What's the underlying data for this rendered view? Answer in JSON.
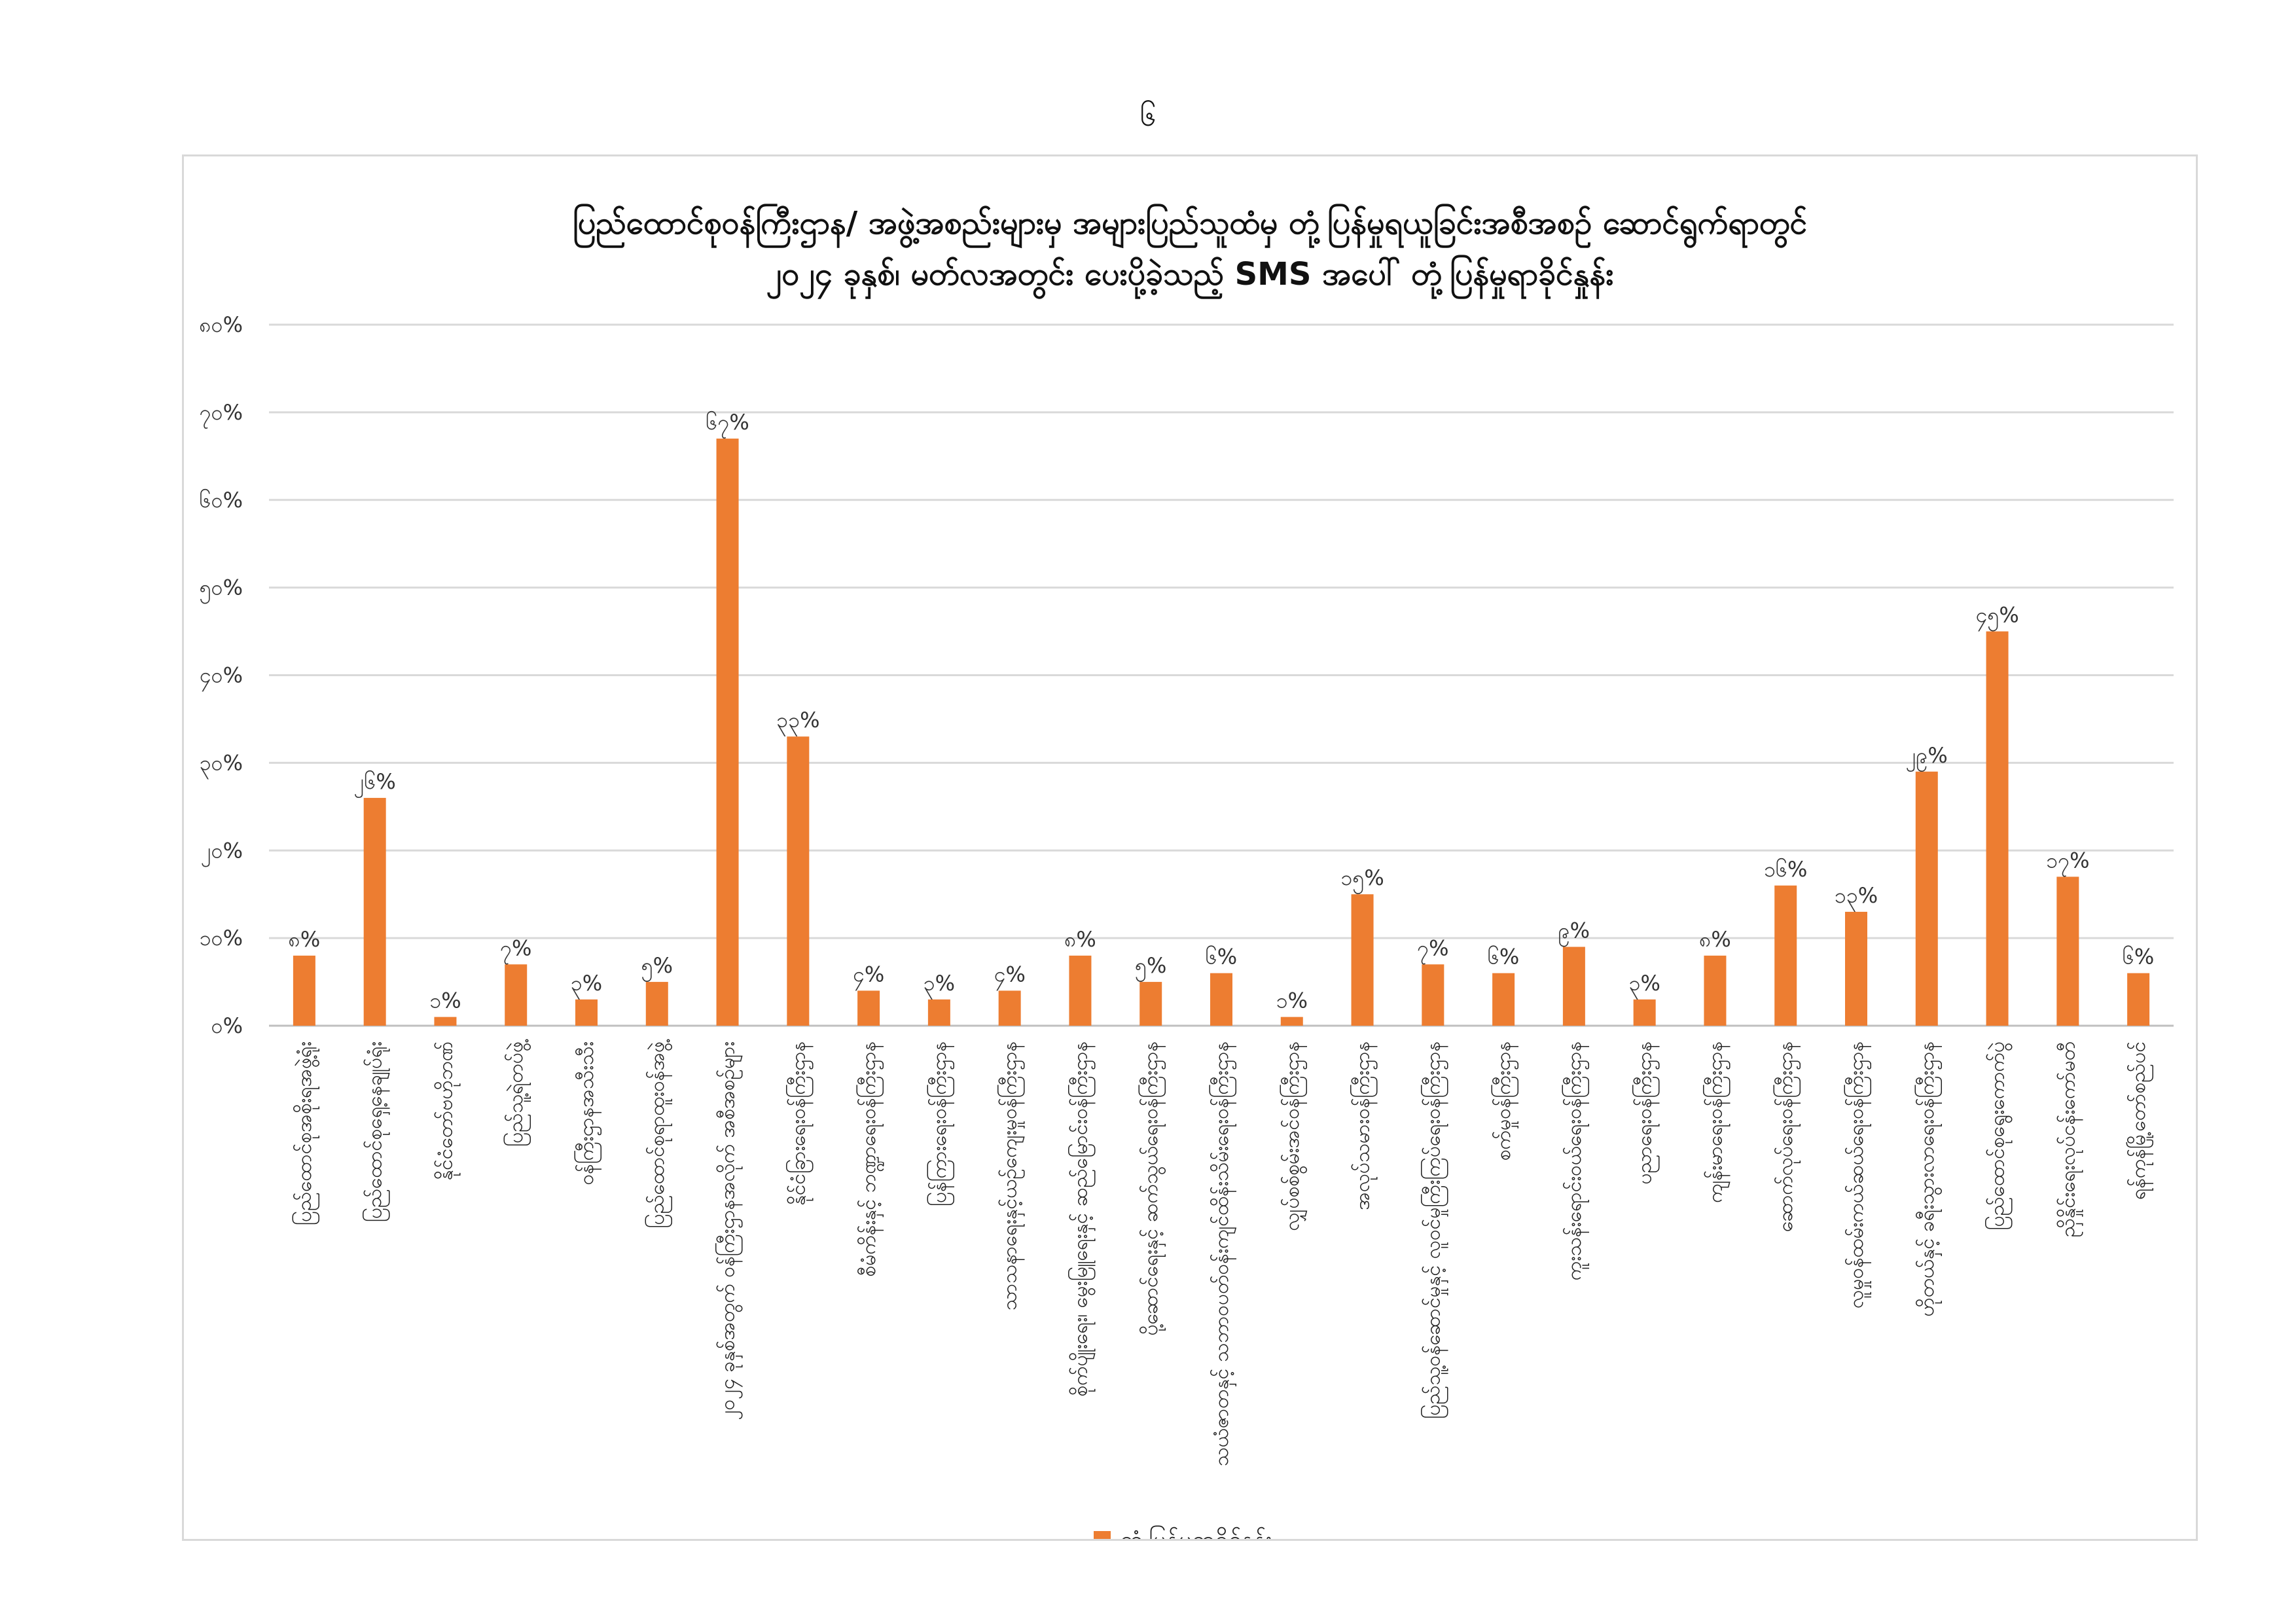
{
  "page": {
    "number": "၆"
  },
  "chart_data": {
    "type": "bar",
    "title": "ပြည်ထောင်စုဝန်ကြီးဌာန/ အဖွဲ့အစည်းများမှ အများပြည်သူထံမှ တုံ့ပြန်မှုရယူခြင်းအစီအစဉ် ဆောင်ရွက်ရာတွင်",
    "subtitle": "၂၀၂၄ ခုနှစ်၊ မတ်လအတွင်း ပေးပို့ခဲ့သည့် SMS အပေါ် တုံ့ပြန်မှုရာခိုင်နှုန်း",
    "xlabel": "",
    "ylabel": "",
    "ylim": [
      0,
      80
    ],
    "yticks": [
      0,
      10,
      20,
      30,
      40,
      50,
      60,
      70,
      80
    ],
    "ytick_labels": [
      "၀%",
      "၁၀%",
      "၂၀%",
      "၃၀%",
      "၄၀%",
      "၅၀%",
      "၆၀%",
      "၇၀%",
      "၈၀%"
    ],
    "grid": true,
    "legend_position": "bottom",
    "color": "#ED7D31",
    "categories": [
      "ပြည်ထောင်စုအစိုးရအဖွဲ့ရုံး",
      "ပြည်ထောင်စုရှေ့နေချုပ်ရုံး",
      "နိုင်ငံတော်ဗဟိုဘဏ်",
      "ပြည်သူ့ရဲတပ်ဖွဲ့",
      "ဝန်ကြီးဌာနအသီးသီး",
      "ပြည်ထောင်စုရာထူးဝန်အဖွဲ့",
      "၂၀၂၄ ခုနှစ်အတွက် ဝန်ကြီးဌာနအလိုက် အစီအစဉ်များ",
      "နိုင်ငံခြားရေးဝန်ကြီးဌာန",
      "စီမံကိန်းနှင့် ဘဏ္ဍာရေးဝန်ကြီးဌာန",
      "ပြန်ကြားရေးဝန်ကြီးဌာန",
      "သာသနာရေးနှင့်ယဉ်ကျေးမှုဝန်ကြီးဌာန",
      "စိုက်ပျိုးရေး၊ မွေးမြူရေးနှင့် ဆည်မြောင်းဝန်ကြီးဌာန",
      "ပို့ဆောင်ရေးနှင့် ဆက်သွယ်ရေးဝန်ကြီးဌာန",
      "သယံဇာတနှင့် သဘာဝပတ်ဝန်းကျင်ထိန်းသိမ်းရေးဝန်ကြီးဌာန",
      "လျှပ်စစ်စွမ်းအင်ဝန်ကြီးဌာန",
      "အလုပ်သမားဝန်ကြီးဌာန",
      "ပြည်သူ့ဝန်ဆောင်မှုနှင့် လူဝင်မှုကြီးကြပ်ရေးဝန်ကြီးဌာန",
      "စက်မှုဝန်ကြီးဌာန",
      "ကူးသန်းရောင်းဝယ်ရေးဝန်ကြီးဌာန",
      "ပညာရေးဝန်ကြီးဌာန",
      "ကျန်းမာရေးဝန်ကြီးဌာန",
      "ဆောက်လုပ်ရေးဝန်ကြီးဌာန",
      "လူမှုဝန်ထမ်းကယ်ဆယ်ရေးဝန်ကြီးဌာန",
      "ဟိုတယ်နှင့် ခရီးသွားလာရေးဝန်ကြီးဌာန",
      "ပြည်ထောင်စုရွေးကောက်ပွဲ",
      "ညှိနှိုင်းရေးလုပ်ငန်းကော်မတီ",
      "ရန်ကုန်မြို့တော်စည်ပင်"
    ],
    "series": [
      {
        "name": "တုံ့ပြန်မှုရာခိုင်နှုန်း",
        "values": [
          8,
          26,
          1,
          7,
          3,
          5,
          67,
          33,
          4,
          3,
          4,
          8,
          5,
          6,
          1,
          15,
          7,
          6,
          9,
          3,
          8,
          16,
          13,
          29,
          45,
          17,
          6
        ],
        "labels": [
          "၈%",
          "၂၆%",
          "၁%",
          "၇%",
          "၃%",
          "၅%",
          "၆၇%",
          "၃၃%",
          "၄%",
          "၃%",
          "၄%",
          "၈%",
          "၅%",
          "၆%",
          "၁%",
          "၁၅%",
          "၇%",
          "၆%",
          "၉%",
          "၃%",
          "၈%",
          "၁၆%",
          "၁၃%",
          "၂၉%",
          "၄၅%",
          "၁၇%",
          "၆%"
        ]
      }
    ]
  }
}
